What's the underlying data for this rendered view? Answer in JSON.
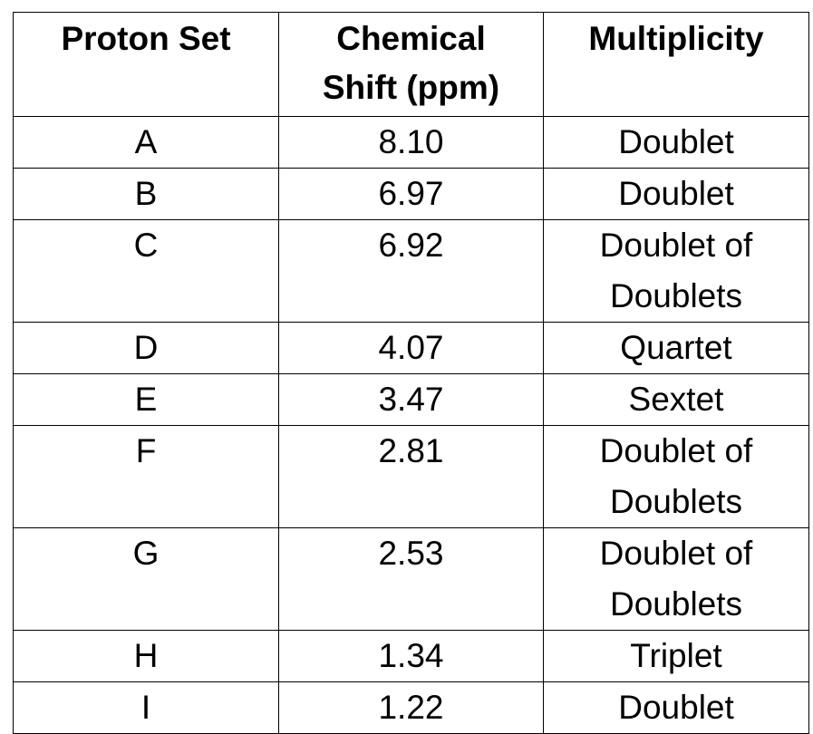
{
  "table": {
    "headers": [
      "Proton Set",
      "Chemical\nShift (ppm)",
      "Multiplicity"
    ],
    "rows": [
      {
        "proton_set": "A",
        "chemical_shift": "8.10",
        "multiplicity": "Doublet"
      },
      {
        "proton_set": "B",
        "chemical_shift": "6.97",
        "multiplicity": "Doublet"
      },
      {
        "proton_set": "C",
        "chemical_shift": "6.92",
        "multiplicity": "Doublet of\nDoublets"
      },
      {
        "proton_set": "D",
        "chemical_shift": "4.07",
        "multiplicity": "Quartet"
      },
      {
        "proton_set": "E",
        "chemical_shift": "3.47",
        "multiplicity": "Sextet"
      },
      {
        "proton_set": "F",
        "chemical_shift": "2.81",
        "multiplicity": "Doublet of\nDoublets"
      },
      {
        "proton_set": "G",
        "chemical_shift": "2.53",
        "multiplicity": "Doublet of\nDoublets"
      },
      {
        "proton_set": "H",
        "chemical_shift": "1.34",
        "multiplicity": "Triplet"
      },
      {
        "proton_set": "I",
        "chemical_shift": "1.22",
        "multiplicity": "Doublet"
      }
    ]
  }
}
